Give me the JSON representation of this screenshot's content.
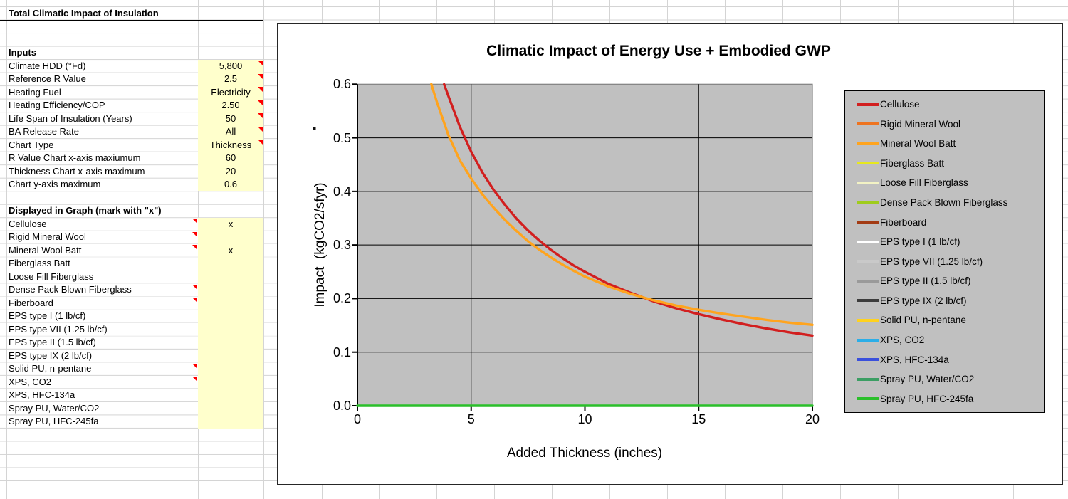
{
  "sheet": {
    "title_cell": "Total Climatic Impact of Insulation",
    "inputs_header": "Inputs",
    "inputs": [
      {
        "label": "Climate HDD (°Fd)",
        "value": "5,800",
        "comment": true
      },
      {
        "label": "Reference R Value",
        "value": "2.5",
        "comment": true
      },
      {
        "label": "Heating Fuel",
        "value": "Electricity",
        "comment": true
      },
      {
        "label": "Heating Efficiency/COP",
        "value": "2.50",
        "comment": true
      },
      {
        "label": "Life Span of Insulation (Years)",
        "value": "50",
        "comment": true
      },
      {
        "label": "BA Release Rate",
        "value": "All",
        "comment": true
      },
      {
        "label": "Chart Type",
        "value": "Thickness",
        "comment": true
      },
      {
        "label": "R Value Chart x-axis maxiumum",
        "value": "60",
        "comment": false
      },
      {
        "label": "Thickness Chart x-axis maximum",
        "value": "20",
        "comment": false
      },
      {
        "label": "Chart y-axis maximum",
        "value": "0.6",
        "comment": false
      }
    ],
    "displayed_header": "Displayed in Graph (mark with \"x\")",
    "materials": [
      {
        "label": "Cellulose",
        "value": "x",
        "comment": true
      },
      {
        "label": "Rigid Mineral Wool",
        "value": "",
        "comment": true
      },
      {
        "label": "Mineral Wool Batt",
        "value": "x",
        "comment": true
      },
      {
        "label": "Fiberglass Batt",
        "value": "",
        "comment": false
      },
      {
        "label": "Loose Fill Fiberglass",
        "value": "",
        "comment": false
      },
      {
        "label": "Dense Pack Blown Fiberglass",
        "value": "",
        "comment": true
      },
      {
        "label": "Fiberboard",
        "value": "",
        "comment": true
      },
      {
        "label": "EPS type I (1 lb/cf)",
        "value": "",
        "comment": false
      },
      {
        "label": "EPS type VII (1.25 lb/cf)",
        "value": "",
        "comment": false
      },
      {
        "label": "EPS type II (1.5 lb/cf)",
        "value": "",
        "comment": false
      },
      {
        "label": "EPS type IX (2 lb/cf)",
        "value": "",
        "comment": false
      },
      {
        "label": "Solid PU, n-pentane",
        "value": "",
        "comment": true
      },
      {
        "label": "XPS, CO2",
        "value": "",
        "comment": true
      },
      {
        "label": "XPS, HFC-134a",
        "value": "",
        "comment": false
      },
      {
        "label": "Spray PU, Water/CO2",
        "value": "",
        "comment": false
      },
      {
        "label": "Spray PU, HFC-245fa",
        "value": "",
        "comment": false
      }
    ],
    "colors": {
      "input_cell_bg": "#FFFFCC",
      "comment_flag": "#FF0000",
      "gridline": "#D4D4D4"
    }
  },
  "chart_data": {
    "type": "line",
    "title": "Climatic Impact of Energy Use + Embodied GWP",
    "xlabel": "Added Thickness (inches)",
    "ylabel": "Impact  (kgCO2/sfyr)",
    "xlim": [
      0,
      20
    ],
    "ylim": [
      0,
      0.6
    ],
    "x_ticks": [
      "0",
      "5",
      "10",
      "15",
      "20"
    ],
    "y_ticks": [
      "0.6",
      "0.5",
      "0.4",
      "0.3",
      "0.2",
      "0.1",
      "0.0"
    ],
    "grid": true,
    "legend_position": "right",
    "plot_bg": "#C0C0C0",
    "series": [
      {
        "name": "Cellulose",
        "color": "#D21F1F",
        "points": [
          [
            3.81,
            0.6
          ],
          [
            4,
            0.578
          ],
          [
            4.5,
            0.521
          ],
          [
            5,
            0.474
          ],
          [
            5.5,
            0.435
          ],
          [
            6,
            0.402
          ],
          [
            6.5,
            0.374
          ],
          [
            7,
            0.349
          ],
          [
            7.5,
            0.327
          ],
          [
            8,
            0.308
          ],
          [
            8.5,
            0.291
          ],
          [
            9,
            0.276
          ],
          [
            9.5,
            0.262
          ],
          [
            10,
            0.25
          ],
          [
            11,
            0.228
          ],
          [
            12,
            0.211
          ],
          [
            13,
            0.195
          ],
          [
            14,
            0.182
          ],
          [
            15,
            0.171
          ],
          [
            16,
            0.161
          ],
          [
            17,
            0.152
          ],
          [
            18,
            0.144
          ],
          [
            19,
            0.137
          ],
          [
            20,
            0.131
          ]
        ]
      },
      {
        "name": "Mineral Wool Batt",
        "color": "#FFA41E",
        "points": [
          [
            3.25,
            0.6
          ],
          [
            3.5,
            0.566
          ],
          [
            4,
            0.505
          ],
          [
            4.5,
            0.458
          ],
          [
            5,
            0.424
          ],
          [
            5.5,
            0.394
          ],
          [
            6,
            0.369
          ],
          [
            6.5,
            0.346
          ],
          [
            7,
            0.326
          ],
          [
            7.5,
            0.307
          ],
          [
            8,
            0.291
          ],
          [
            8.5,
            0.277
          ],
          [
            9,
            0.264
          ],
          [
            9.5,
            0.252
          ],
          [
            10,
            0.241
          ],
          [
            11,
            0.223
          ],
          [
            12,
            0.209
          ],
          [
            13,
            0.197
          ],
          [
            14,
            0.187
          ],
          [
            15,
            0.179
          ],
          [
            16,
            0.172
          ],
          [
            17,
            0.166
          ],
          [
            18,
            0.16
          ],
          [
            19,
            0.155
          ],
          [
            20,
            0.151
          ]
        ]
      },
      {
        "name": "Spray PU, HFC-245fa",
        "color": "#2ABF2A",
        "points": [
          [
            0,
            0
          ],
          [
            20,
            0
          ]
        ]
      }
    ],
    "legend": [
      {
        "label": "Cellulose",
        "color": "#D21F1F"
      },
      {
        "label": "Rigid Mineral Wool",
        "color": "#EE7420"
      },
      {
        "label": "Mineral Wool Batt",
        "color": "#FFA41E"
      },
      {
        "label": "Fiberglass Batt",
        "color": "#E6E81E"
      },
      {
        "label": "Loose Fill Fiberglass",
        "color": "#F2F2C4"
      },
      {
        "label": "Dense Pack Blown Fiberglass",
        "color": "#9FCC1C"
      },
      {
        "label": "Fiberboard",
        "color": "#A33B14"
      },
      {
        "label": "EPS type I (1 lb/cf)",
        "color": "#FFFFFF"
      },
      {
        "label": "EPS type VII (1.25 lb/cf)",
        "color": "#C9C9C9"
      },
      {
        "label": "EPS type II (1.5 lb/cf)",
        "color": "#9A9A9A"
      },
      {
        "label": "EPS type IX (2 lb/cf)",
        "color": "#3C3C3C"
      },
      {
        "label": "Solid PU, n-pentane",
        "color": "#FFD21E"
      },
      {
        "label": "XPS, CO2",
        "color": "#2BAEE8"
      },
      {
        "label": "XPS, HFC-134a",
        "color": "#3A50DC"
      },
      {
        "label": "Spray PU, Water/CO2",
        "color": "#3B9E63"
      },
      {
        "label": "Spray PU, HFC-245fa",
        "color": "#2ABF2A"
      }
    ]
  }
}
